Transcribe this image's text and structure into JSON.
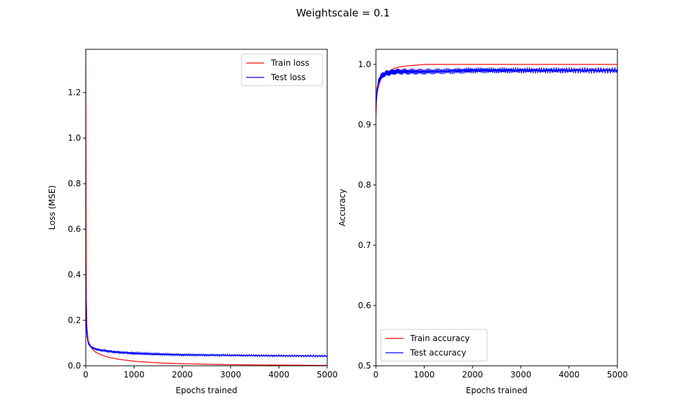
{
  "suptitle": "Weightscale = 0.1",
  "chart_data": [
    {
      "type": "line",
      "xlabel": "Epochs trained",
      "ylabel": "Loss (MSE)",
      "xlim": [
        0,
        5000
      ],
      "ylim": [
        0,
        1.39
      ],
      "xticks": [
        0,
        1000,
        2000,
        3000,
        4000,
        5000
      ],
      "yticks": [
        0.0,
        0.2,
        0.4,
        0.6,
        0.8,
        1.0,
        1.2
      ],
      "ytick_labels": [
        "0.0",
        "0.2",
        "0.4",
        "0.6",
        "0.8",
        "1.0",
        "1.2"
      ],
      "grid": false,
      "legend": "upper-right",
      "series": [
        {
          "name": "Train loss",
          "color": "#ff0000",
          "x": [
            0,
            10,
            25,
            50,
            100,
            150,
            200,
            300,
            400,
            500,
            700,
            1000,
            1500,
            2000,
            2500,
            3000,
            4000,
            5000
          ],
          "y": [
            1.39,
            0.3,
            0.17,
            0.11,
            0.085,
            0.07,
            0.06,
            0.05,
            0.042,
            0.036,
            0.028,
            0.02,
            0.013,
            0.009,
            0.007,
            0.005,
            0.003,
            0.002
          ],
          "noise": 0
        },
        {
          "name": "Test loss",
          "color": "#0000ff",
          "x": [
            0,
            10,
            25,
            50,
            100,
            150,
            200,
            300,
            400,
            500,
            700,
            1000,
            1500,
            2000,
            2500,
            3000,
            4000,
            5000
          ],
          "y": [
            0.44,
            0.2,
            0.13,
            0.1,
            0.085,
            0.078,
            0.074,
            0.069,
            0.066,
            0.063,
            0.059,
            0.055,
            0.051,
            0.048,
            0.047,
            0.046,
            0.044,
            0.043
          ],
          "noise": 0.004
        }
      ]
    },
    {
      "type": "line",
      "xlabel": "Epochs trained",
      "ylabel": "Accuracy",
      "xlim": [
        0,
        5000
      ],
      "ylim": [
        0.5,
        1.025
      ],
      "xticks": [
        0,
        1000,
        2000,
        3000,
        4000,
        5000
      ],
      "yticks": [
        0.5,
        0.6,
        0.7,
        0.8,
        0.9,
        1.0
      ],
      "ytick_labels": [
        "0.5",
        "0.6",
        "0.7",
        "0.8",
        "0.9",
        "1.0"
      ],
      "grid": false,
      "legend": "lower-left",
      "series": [
        {
          "name": "Train accuracy",
          "color": "#ff0000",
          "x": [
            0,
            10,
            30,
            60,
            100,
            200,
            300,
            400,
            500,
            700,
            900,
            1000,
            2000,
            3000,
            4000,
            5000
          ],
          "y": [
            0.91,
            0.94,
            0.955,
            0.965,
            0.975,
            0.985,
            0.99,
            0.994,
            0.996,
            0.998,
            0.999,
            1.0,
            1.0,
            1.0,
            1.0,
            1.0
          ],
          "noise": 0
        },
        {
          "name": "Test accuracy",
          "color": "#0000ff",
          "x": [
            0,
            20,
            50,
            100,
            200,
            400,
            600,
            800,
            1000,
            1600,
            2000,
            3000,
            4000,
            5000
          ],
          "y": [
            0.93,
            0.955,
            0.97,
            0.98,
            0.985,
            0.988,
            0.988,
            0.988,
            0.988,
            0.989,
            0.99,
            0.99,
            0.99,
            0.99
          ],
          "noise": 0.005
        }
      ]
    }
  ]
}
